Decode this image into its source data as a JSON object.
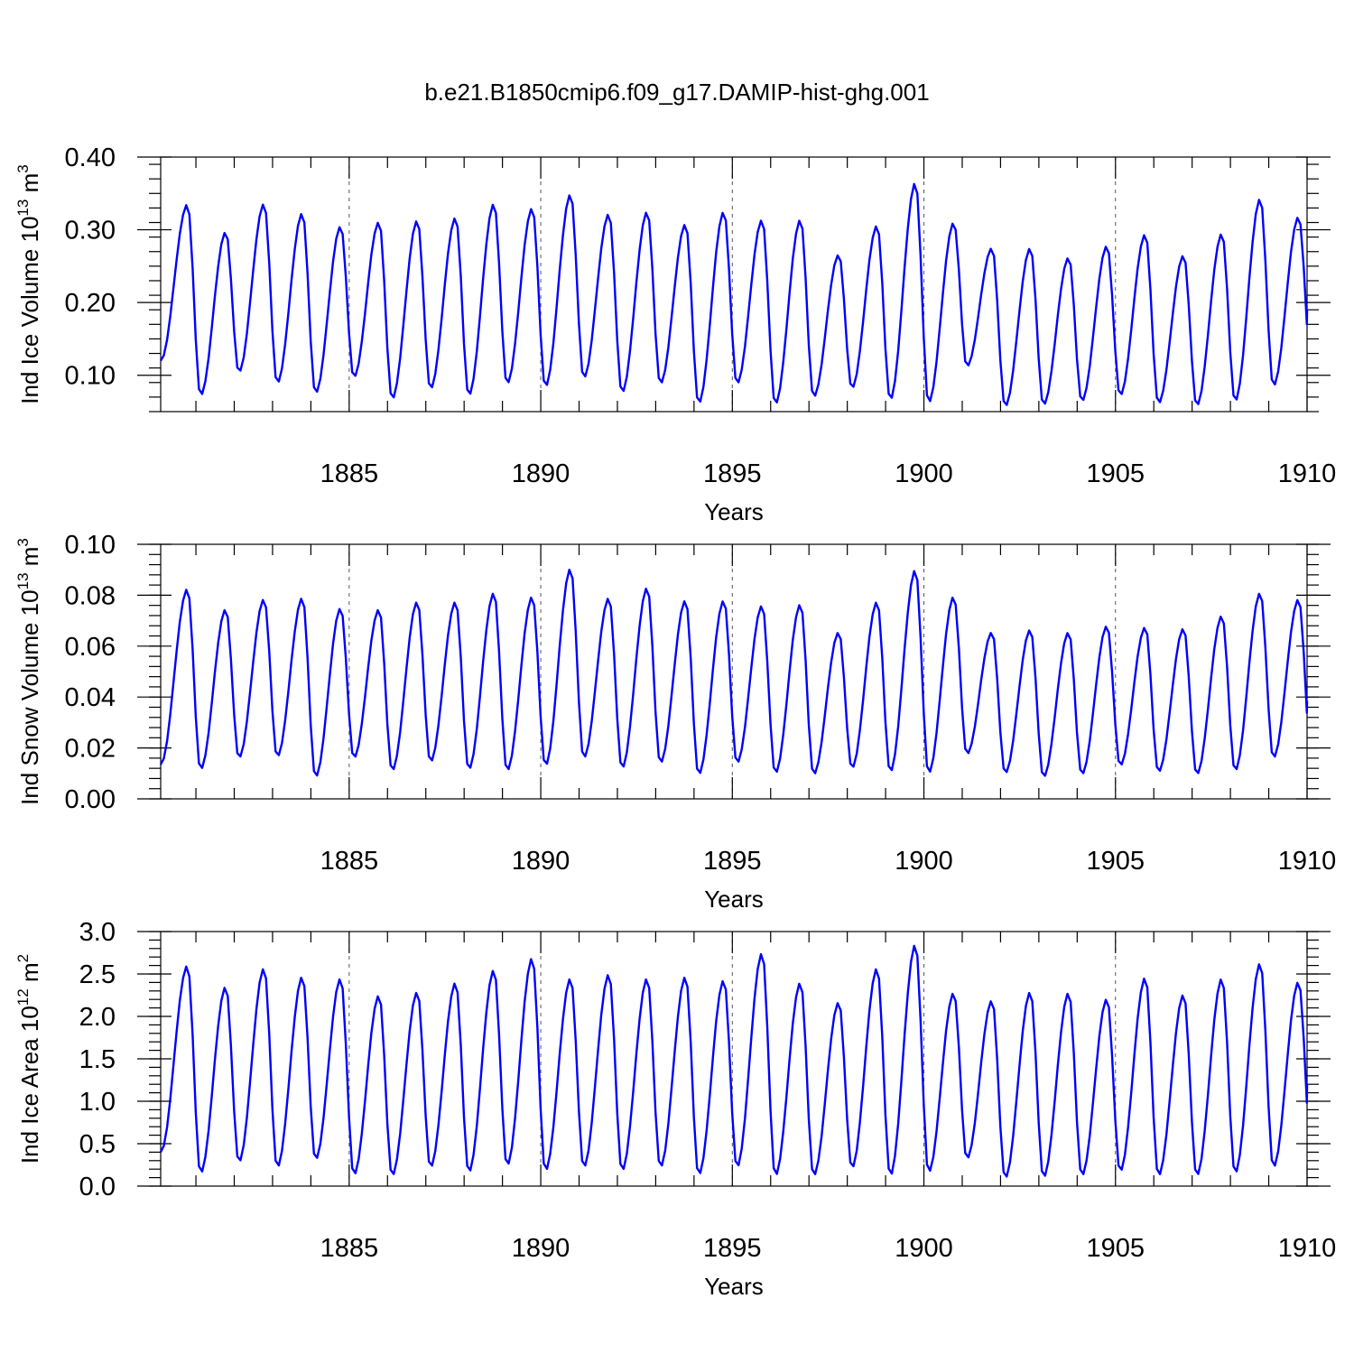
{
  "title": "b.e21.B1850cmip6.f09_g17.DAMIP-hist-ghg.001",
  "colors": {
    "series": "#0000ff",
    "grid": "#555555"
  },
  "chart_data": [
    {
      "type": "line",
      "name": "ice-volume",
      "ylabel_main": "Ind Ice Volume 10",
      "ylabel_sup": "13",
      "ylabel_unit": " m",
      "ylabel_unit_sup": "3",
      "xlabel": "Years",
      "xlim": [
        1880.08,
        1910.0
      ],
      "ylim": [
        0.05,
        0.4
      ],
      "yticks": [
        0.1,
        0.2,
        0.3,
        0.4
      ],
      "ytick_labels": [
        "0.10",
        "0.20",
        "0.30",
        "0.40"
      ],
      "xticks": [
        1885,
        1890,
        1895,
        1900,
        1905,
        1910
      ],
      "xtick_labels": [
        "1885",
        "1890",
        "1895",
        "1900",
        "1905",
        "1910"
      ],
      "grid_x": [
        1885,
        1890,
        1895,
        1900,
        1905
      ],
      "start_year": 1880.08,
      "step": 0.08333,
      "peaks": [
        0.335,
        0.297,
        0.336,
        0.323,
        0.305,
        0.311,
        0.313,
        0.317,
        0.336,
        0.33,
        0.349,
        0.322,
        0.325,
        0.308,
        0.325,
        0.314,
        0.314,
        0.266,
        0.306,
        0.365,
        0.31,
        0.275,
        0.275,
        0.262,
        0.278,
        0.294,
        0.265,
        0.295,
        0.343,
        0.318
      ],
      "troughs": [
        0.12,
        0.072,
        0.104,
        0.089,
        0.075,
        0.097,
        0.067,
        0.081,
        0.072,
        0.088,
        0.084,
        0.096,
        0.076,
        0.088,
        0.061,
        0.088,
        0.06,
        0.07,
        0.082,
        0.066,
        0.062,
        0.112,
        0.057,
        0.059,
        0.064,
        0.072,
        0.061,
        0.058,
        0.064,
        0.085,
        0.108
      ],
      "end_value": 0.189
    },
    {
      "type": "line",
      "name": "snow-volume",
      "ylabel_main": "Ind Snow Volume 10",
      "ylabel_sup": "13",
      "ylabel_unit": " m",
      "ylabel_unit_sup": "3",
      "xlabel": "Years",
      "xlim": [
        1880.08,
        1910.0
      ],
      "ylim": [
        0.0,
        0.1
      ],
      "yticks": [
        0.0,
        0.02,
        0.04,
        0.06,
        0.08,
        0.1
      ],
      "ytick_labels": [
        "0.00",
        "0.02",
        "0.04",
        "0.06",
        "0.08",
        "0.10"
      ],
      "xticks": [
        1885,
        1890,
        1895,
        1900,
        1905,
        1910
      ],
      "xtick_labels": [
        "1885",
        "1890",
        "1895",
        "1900",
        "1905",
        "1910"
      ],
      "grid_x": [
        1885,
        1890,
        1895,
        1900,
        1905
      ],
      "start_year": 1880.08,
      "step": 0.08333,
      "peaks": [
        0.0825,
        0.0745,
        0.0785,
        0.079,
        0.075,
        0.0745,
        0.0775,
        0.0775,
        0.081,
        0.0795,
        0.0905,
        0.079,
        0.083,
        0.078,
        0.078,
        0.076,
        0.0765,
        0.0655,
        0.0775,
        0.09,
        0.0795,
        0.0655,
        0.0665,
        0.0655,
        0.068,
        0.0675,
        0.067,
        0.072,
        0.081,
        0.0785
      ],
      "troughs": [
        0.0135,
        0.0115,
        0.016,
        0.0165,
        0.0085,
        0.016,
        0.011,
        0.0145,
        0.0115,
        0.011,
        0.013,
        0.016,
        0.012,
        0.014,
        0.0095,
        0.014,
        0.01,
        0.0095,
        0.012,
        0.0105,
        0.01,
        0.0175,
        0.01,
        0.0085,
        0.0095,
        0.013,
        0.0105,
        0.0095,
        0.011,
        0.016,
        0.015
      ],
      "end_value": 0.0385
    },
    {
      "type": "line",
      "name": "ice-area",
      "ylabel_main": "Ind Ice Area 10",
      "ylabel_sup": "12",
      "ylabel_unit": " m",
      "ylabel_unit_sup": "2",
      "xlabel": "Years",
      "xlim": [
        1880.08,
        1910.0
      ],
      "ylim": [
        0.0,
        3.0
      ],
      "yticks": [
        0.0,
        0.5,
        1.0,
        1.5,
        2.0,
        2.5,
        3.0
      ],
      "ytick_labels": [
        "0.0",
        "0.5",
        "1.0",
        "1.5",
        "2.0",
        "2.5",
        "3.0"
      ],
      "xticks": [
        1885,
        1890,
        1895,
        1900,
        1905,
        1910
      ],
      "xtick_labels": [
        "1885",
        "1890",
        "1895",
        "1900",
        "1905",
        "1910"
      ],
      "grid_x": [
        1885,
        1890,
        1895,
        1900,
        1905
      ],
      "start_year": 1880.08,
      "step": 0.08333,
      "peaks": [
        2.6,
        2.35,
        2.57,
        2.47,
        2.45,
        2.25,
        2.29,
        2.4,
        2.55,
        2.69,
        2.45,
        2.5,
        2.45,
        2.47,
        2.43,
        2.75,
        2.4,
        2.17,
        2.57,
        2.85,
        2.28,
        2.19,
        2.29,
        2.28,
        2.21,
        2.46,
        2.26,
        2.45,
        2.63,
        2.41
      ],
      "troughs": [
        0.4,
        0.15,
        0.28,
        0.22,
        0.31,
        0.13,
        0.12,
        0.22,
        0.16,
        0.24,
        0.18,
        0.22,
        0.18,
        0.22,
        0.13,
        0.22,
        0.12,
        0.12,
        0.21,
        0.12,
        0.16,
        0.32,
        0.09,
        0.1,
        0.12,
        0.17,
        0.12,
        0.12,
        0.15,
        0.22,
        0.38
      ],
      "end_value": 1.2
    }
  ]
}
